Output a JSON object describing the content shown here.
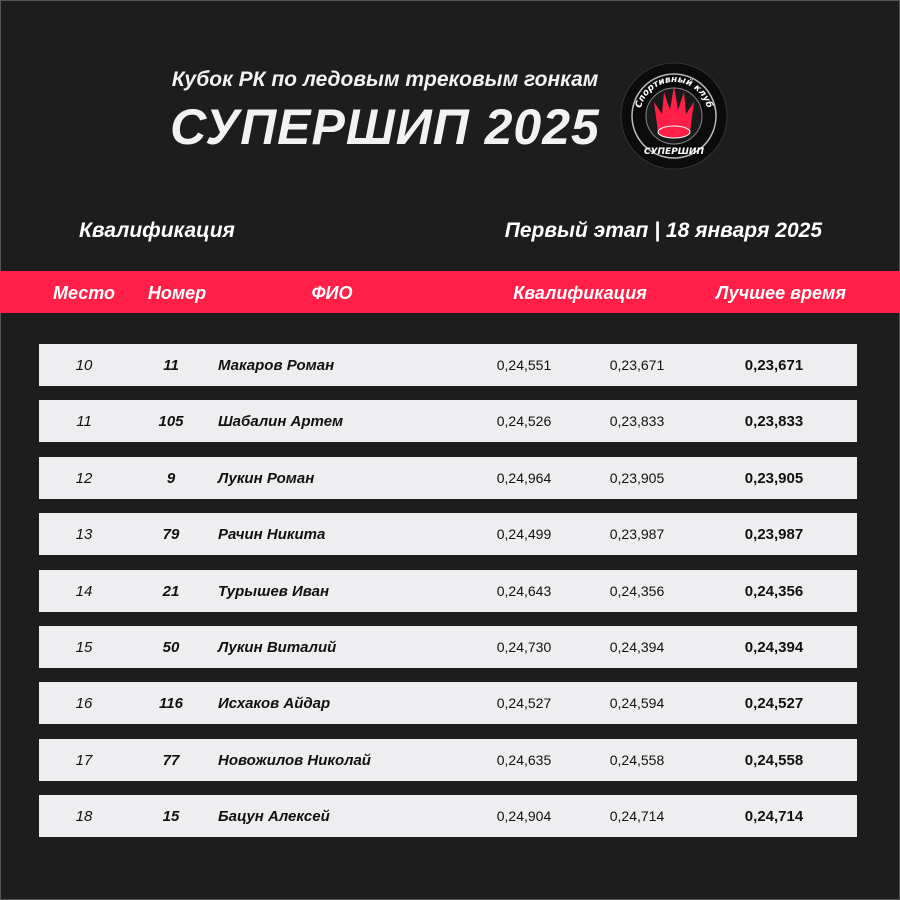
{
  "header": {
    "subtitle": "Кубок РК по ледовым трековым гонкам",
    "title": "СУПЕРШИП 2025",
    "logo_text_top": "Спортивный клуб",
    "logo_text_bottom": "СУПЕРШИП"
  },
  "section": {
    "left": "Квалификация",
    "right": "Первый этап | 18 января 2025"
  },
  "colors": {
    "background": "#1d1d1e",
    "accent": "#ff1f47",
    "row": "#eeeef0"
  },
  "table": {
    "columns": [
      "Место",
      "Номер",
      "ФИО",
      "Квалификация",
      "Лучшее время"
    ],
    "rows": [
      {
        "place": "10",
        "number": "11",
        "name": "Макаров Роман",
        "q1": "0,24,551",
        "q2": "0,23,671",
        "best": "0,23,671"
      },
      {
        "place": "11",
        "number": "105",
        "name": "Шабалин Артем",
        "q1": "0,24,526",
        "q2": "0,23,833",
        "best": "0,23,833"
      },
      {
        "place": "12",
        "number": "9",
        "name": "Лукин Роман",
        "q1": "0,24,964",
        "q2": "0,23,905",
        "best": "0,23,905"
      },
      {
        "place": "13",
        "number": "79",
        "name": "Рачин Никита",
        "q1": "0,24,499",
        "q2": "0,23,987",
        "best": "0,23,987"
      },
      {
        "place": "14",
        "number": "21",
        "name": "Турышев Иван",
        "q1": "0,24,643",
        "q2": "0,24,356",
        "best": "0,24,356"
      },
      {
        "place": "15",
        "number": "50",
        "name": "Лукин Виталий",
        "q1": "0,24,730",
        "q2": "0,24,394",
        "best": "0,24,394"
      },
      {
        "place": "16",
        "number": "116",
        "name": "Исхаков Айдар",
        "q1": "0,24,527",
        "q2": "0,24,594",
        "best": "0,24,527"
      },
      {
        "place": "17",
        "number": "77",
        "name": "Новожилов Николай",
        "q1": "0,24,635",
        "q2": "0,24,558",
        "best": "0,24,558"
      },
      {
        "place": "18",
        "number": "15",
        "name": "Бацун Алексей",
        "q1": "0,24,904",
        "q2": "0,24,714",
        "best": "0,24,714"
      }
    ]
  }
}
